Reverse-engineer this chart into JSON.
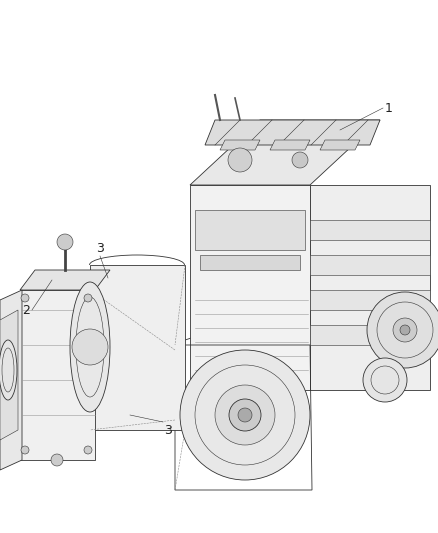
{
  "background_color": "#ffffff",
  "fig_width": 4.38,
  "fig_height": 5.33,
  "dpi": 100,
  "label_1": "1",
  "label_2": "2",
  "label_3_top": "3",
  "label_3_bot": "3",
  "line_color": "#333333",
  "text_color": "#222222",
  "fontsize_labels": 9,
  "engine_color": "#f5f5f5",
  "trans_color": "#f0f0f0",
  "dark_gray": "#aaaaaa",
  "mid_gray": "#cccccc",
  "light_gray": "#e8e8e8"
}
